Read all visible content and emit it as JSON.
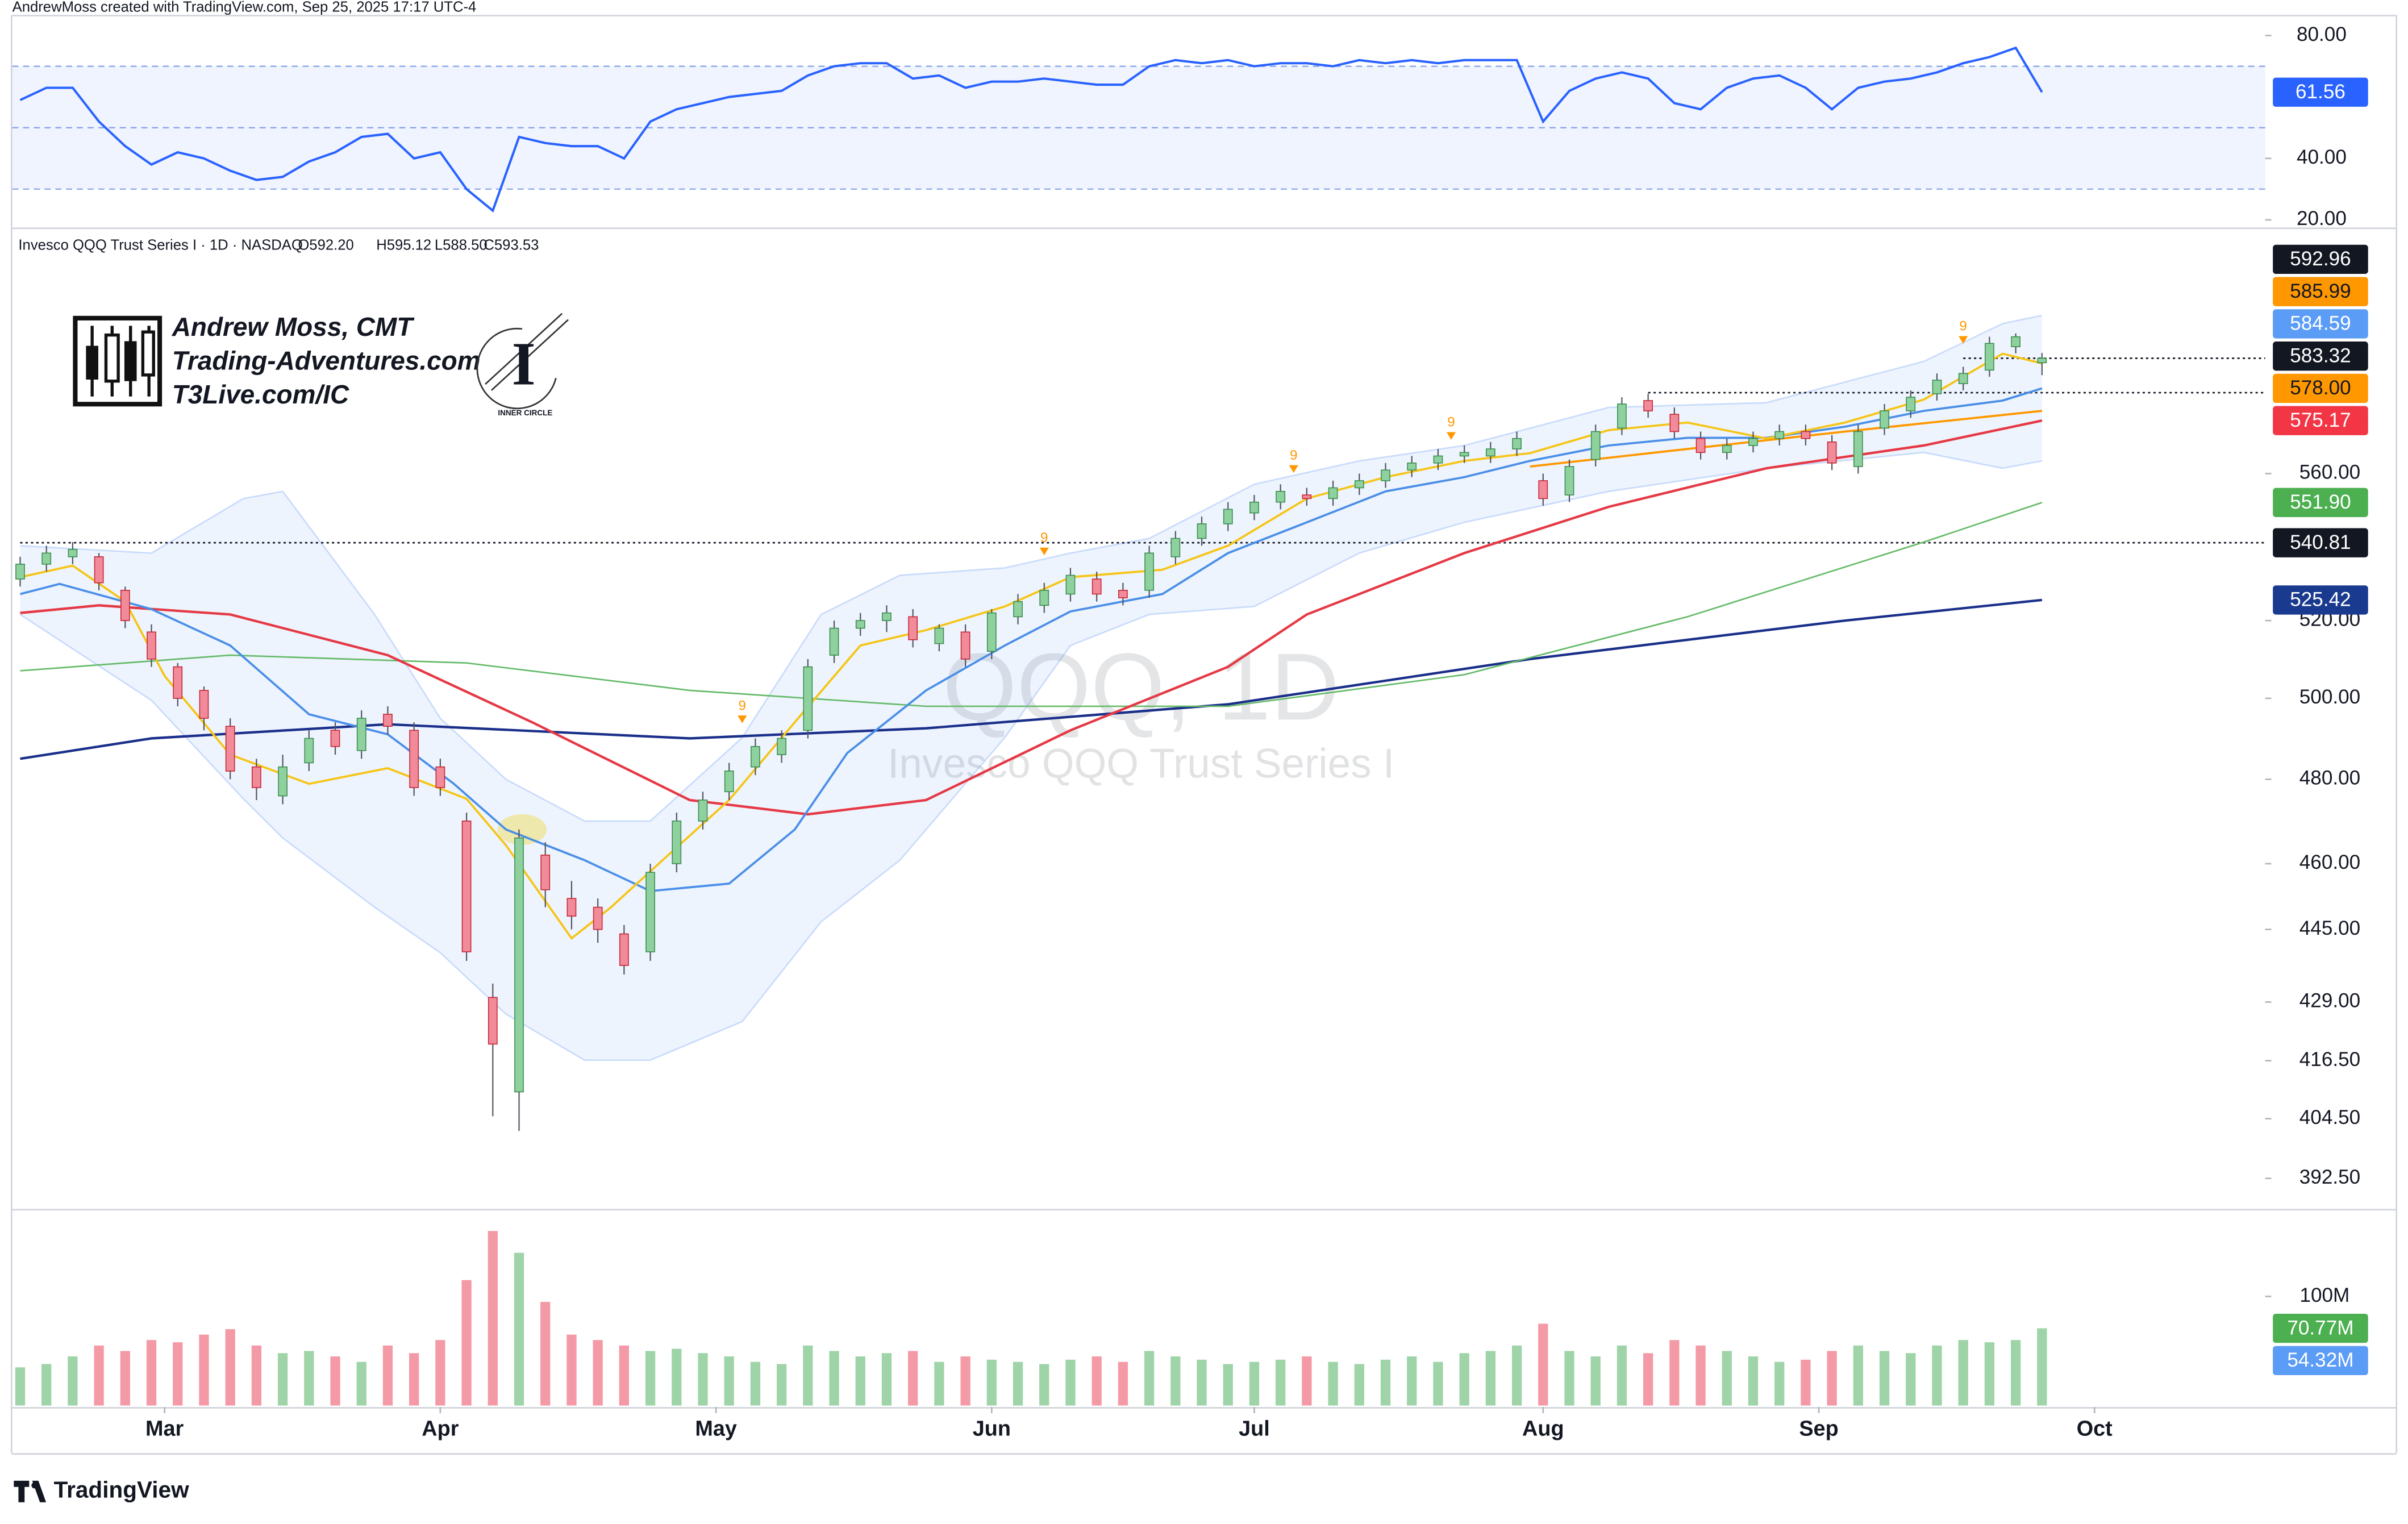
{
  "header": {
    "credit": "AndrewMoss created with TradingView.com, Sep 25, 2025 17:17 UTC-4",
    "symbol": "Invesco QQQ Trust Series I · 1D · NASDAQ",
    "ohlc": [
      {
        "value": 592.2,
        "label": "O592.20"
      },
      {
        "value": 595.12,
        "label": "H595.12"
      },
      {
        "value": 588.5,
        "label": "L588.50"
      },
      {
        "value": 593.53,
        "label": "C593.53"
      }
    ]
  },
  "logo": {
    "name": "Andrew Moss, CMT",
    "site": "Trading-Adventures.com",
    "link": "T3Live.com/IC",
    "badge": "INNER CIRCLE"
  },
  "footer": {
    "brand": "TradingView"
  },
  "chart_data": {
    "type": "candlestick",
    "watermark": {
      "title": "QQQ, 1D",
      "subtitle": "Invesco QQQ Trust Series I"
    },
    "xlim": [
      -0.6,
      171
    ],
    "xticks": [
      {
        "value": 11,
        "label": "Mar"
      },
      {
        "value": 32,
        "label": "Apr"
      },
      {
        "value": 53,
        "label": "May"
      },
      {
        "value": 74,
        "label": "Jun"
      },
      {
        "value": 94,
        "label": "Jul"
      },
      {
        "value": 116,
        "label": "Aug"
      },
      {
        "value": 137,
        "label": "Sep"
      },
      {
        "value": 158,
        "label": "Oct"
      }
    ],
    "log_scale": true,
    "grid": false,
    "ylim": [
      387.1,
      633
    ],
    "yticks": [
      {
        "value": 392.5,
        "label": "392.50"
      },
      {
        "value": 404.5,
        "label": "404.50"
      },
      {
        "value": 416.5,
        "label": "416.50"
      },
      {
        "value": 429,
        "label": "429.00"
      },
      {
        "value": 445,
        "label": "445.00"
      },
      {
        "value": 460,
        "label": "460.00"
      },
      {
        "value": 480,
        "label": "480.00"
      },
      {
        "value": 500,
        "label": "500.00"
      },
      {
        "value": 520,
        "label": "520.00"
      },
      {
        "value": 560,
        "label": "560.00"
      }
    ],
    "up_color": "#8fd19e",
    "up_edge": "#3d8f52",
    "down_color": "#f28b99",
    "down_edge": "#c62838",
    "wick_color": "#50535e",
    "x": [
      0,
      2,
      4,
      6,
      8,
      10,
      12,
      14,
      16,
      18,
      20,
      22,
      24,
      26,
      28,
      30,
      32,
      34,
      36,
      38,
      40,
      42,
      44,
      46,
      48,
      50,
      52,
      54,
      56,
      58,
      60,
      62,
      64,
      66,
      68,
      70,
      72,
      74,
      76,
      78,
      80,
      82,
      84,
      86,
      88,
      90,
      92,
      94,
      96,
      98,
      100,
      102,
      104,
      106,
      108,
      110,
      112,
      114,
      116,
      118,
      120,
      122,
      124,
      126,
      128,
      130,
      132,
      134,
      136,
      138,
      140,
      142,
      144,
      146,
      148,
      150,
      152,
      154
    ],
    "open": [
      531,
      535,
      537,
      537,
      528,
      517,
      508,
      502,
      493,
      483,
      476,
      484,
      492,
      487,
      496,
      492,
      483,
      470,
      430,
      410,
      462,
      452,
      450,
      444,
      440,
      460,
      470,
      477,
      483,
      486,
      492,
      511,
      518,
      520,
      521,
      514,
      517,
      512,
      521,
      524,
      527,
      531,
      528,
      528,
      537,
      542,
      546,
      549,
      552,
      554,
      553,
      556,
      558,
      561,
      563,
      565,
      565,
      567,
      558,
      554,
      564,
      573,
      581,
      577,
      570,
      566,
      568,
      570,
      572,
      569,
      562,
      573,
      578,
      583,
      586,
      590,
      597,
      592.2
    ],
    "high": [
      537,
      540,
      541,
      538,
      529,
      519,
      509,
      503,
      495,
      485,
      486,
      492,
      494,
      497,
      498,
      494,
      485,
      472,
      433,
      468,
      465,
      456,
      452,
      446,
      460,
      472,
      477,
      484,
      490,
      492,
      510,
      520,
      522,
      524,
      523,
      519,
      519,
      523,
      527,
      530,
      534,
      533,
      530,
      540,
      544,
      548,
      552,
      554,
      557,
      556,
      558,
      560,
      563,
      565,
      567,
      568,
      569,
      572,
      560,
      564,
      574,
      582,
      583,
      579,
      572,
      570,
      572,
      574,
      574,
      571,
      574,
      580,
      584,
      589,
      591,
      600,
      601,
      595.12
    ],
    "low": [
      529,
      533,
      535,
      528,
      518,
      508,
      498,
      492,
      480,
      475,
      474,
      482,
      486,
      485,
      491,
      476,
      476,
      438,
      405,
      402,
      450,
      445,
      442,
      435,
      438,
      458,
      468,
      475,
      481,
      484,
      490,
      509,
      516,
      517,
      513,
      512,
      508,
      510,
      519,
      522,
      525,
      525,
      524,
      526,
      535,
      540,
      544,
      547,
      550,
      551,
      551,
      554,
      556,
      559,
      561,
      563,
      563,
      565,
      551,
      552,
      562,
      571,
      576,
      570,
      564,
      564,
      566,
      568,
      568,
      561,
      560,
      571,
      576,
      581,
      584,
      588,
      595,
      588.5
    ],
    "close": [
      535,
      538,
      539,
      530,
      520,
      510,
      500,
      495,
      482,
      478,
      483,
      490,
      488,
      495,
      493,
      478,
      478,
      440,
      420,
      466,
      454,
      448,
      445,
      437,
      458,
      470,
      475,
      482,
      488,
      490,
      508,
      518,
      520,
      522,
      515,
      518,
      510,
      522,
      525,
      528,
      532,
      527,
      526,
      538,
      542,
      546,
      550,
      552,
      555,
      553,
      556,
      558,
      561,
      563,
      565,
      566,
      567,
      570,
      553,
      562,
      572,
      580,
      578,
      572,
      566,
      568,
      570,
      572,
      570,
      563,
      572,
      578,
      582,
      587,
      589,
      598,
      600,
      593.53
    ],
    "last_price_line_from": 148,
    "bollinger": {
      "fill": "rgba(66,133,244,0.09)",
      "edge": "rgba(66,133,244,0.25)",
      "x": [
        0,
        10,
        17,
        20,
        27,
        32,
        37,
        43,
        48,
        55,
        61,
        67,
        75,
        80,
        86,
        94,
        102,
        110,
        121,
        133,
        145,
        151,
        154
      ],
      "upper": [
        540,
        538,
        553,
        555,
        521.6,
        495,
        480,
        470,
        470,
        490.2,
        521.6,
        532,
        534,
        538,
        542,
        557,
        563.6,
        568,
        579,
        580.4,
        592.6,
        604,
        606.5
      ],
      "lower": [
        521.6,
        499.5,
        475.3,
        466,
        450,
        439.8,
        426.4,
        416.6,
        416.6,
        424.8,
        446.7,
        460.8,
        490.2,
        513.5,
        521.6,
        523.7,
        538,
        546.4,
        555,
        561.5,
        566,
        561.5,
        563.6
      ]
    },
    "moving_averages": [
      {
        "color": "#1a2f8a",
        "width": 1.6,
        "x": [
          0,
          10,
          28,
          51,
          69,
          92,
          115,
          139,
          154
        ],
        "values": [
          485,
          490,
          493.5,
          490,
          492.5,
          498.5,
          510,
          520,
          525.42
        ]
      },
      {
        "color": "#66bb6a",
        "width": 1,
        "x": [
          0,
          16,
          34,
          51,
          69,
          92,
          110,
          127,
          145,
          154
        ],
        "values": [
          507,
          511,
          509,
          502,
          498,
          498,
          506,
          521,
          541,
          551.9
        ]
      },
      {
        "color": "#e53945",
        "width": 1.6,
        "x": [
          0,
          6,
          16,
          28,
          39,
          51,
          60,
          69,
          80,
          92,
          98,
          110,
          121,
          133,
          145,
          154
        ],
        "values": [
          522,
          524,
          521.6,
          511,
          494,
          475,
          471.6,
          475,
          492,
          508,
          521.6,
          538,
          550.7,
          561.5,
          568,
          575.17
        ]
      },
      {
        "color": "#ff9800",
        "width": 1.4,
        "x": [
          115,
          127,
          139,
          154
        ],
        "values": [
          562,
          567,
          572,
          578
        ]
      },
      {
        "color": "#4a8fe7",
        "width": 1.4,
        "x": [
          0,
          3,
          10,
          16,
          22,
          28,
          33,
          37,
          43,
          48,
          54,
          59,
          63,
          69,
          75,
          80,
          87,
          92,
          98,
          104,
          110,
          115,
          121,
          127,
          133,
          139,
          145,
          151,
          154
        ],
        "values": [
          527,
          529.7,
          523,
          513.5,
          496,
          491,
          479,
          468,
          460.8,
          453.7,
          455.4,
          468,
          486.4,
          502,
          513.5,
          522.4,
          527,
          538,
          546.4,
          555,
          559,
          563.6,
          568,
          570.2,
          570.2,
          573.4,
          578,
          581,
          584.59
        ]
      },
      {
        "color": "#f5c518",
        "width": 1.4,
        "x": [
          0,
          4,
          8,
          11,
          16,
          22,
          28,
          34,
          37,
          42,
          45,
          49,
          54,
          59,
          64,
          69,
          75,
          80,
          87,
          92,
          98,
          104,
          110,
          115,
          121,
          127,
          133,
          139,
          145,
          151,
          154
        ],
        "values": [
          531.5,
          534.6,
          525,
          505.7,
          486,
          478.9,
          482.7,
          475.3,
          464.3,
          443,
          450,
          461,
          475,
          494,
          513.5,
          517.5,
          523.7,
          531.5,
          533.5,
          540,
          553,
          559,
          563.6,
          565.8,
          572.4,
          574.6,
          570,
          574.6,
          581.3,
          594.9,
          592
        ]
      }
    ],
    "td_markers": {
      "color": "#ff9800",
      "x": [
        55,
        78,
        97,
        109,
        148
      ],
      "y": [
        498,
        542,
        565,
        574.5,
        603
      ],
      "labels": [
        "9",
        "9",
        "9",
        "9",
        "9"
      ]
    },
    "price_labels": [
      {
        "value": 592.96,
        "color": "#131722",
        "text_color": "#ffffff"
      },
      {
        "value": 585.99,
        "color": "#ff9800",
        "text_color": "#131722"
      },
      {
        "value": 584.59,
        "color": "#5b9cf6",
        "text_color": "#ffffff"
      },
      {
        "value": 583.32,
        "color": "#131722",
        "text_color": "#ffffff",
        "line_from": 124
      },
      {
        "value": 578.0,
        "label": "578.00",
        "color": "#ff9800",
        "text_color": "#131722"
      },
      {
        "value": 575.17,
        "color": "#f23645",
        "text_color": "#ffffff"
      },
      {
        "value": 551.9,
        "label": "551.90",
        "color": "#4caf50",
        "text_color": "#ffffff"
      },
      {
        "value": 540.81,
        "color": "#131722",
        "text_color": "#ffffff",
        "line_from": 0
      },
      {
        "value": 525.42,
        "color": "#1a3a8f",
        "text_color": "#ffffff"
      }
    ],
    "rsi": {
      "ylim": [
        17.5,
        87.5
      ],
      "color": "#2962ff",
      "band_fill": "rgba(41,98,255,0.07)",
      "levels": [
        70,
        50,
        30
      ],
      "yticks": [
        {
          "value": 80,
          "label": "80.00"
        },
        {
          "value": 40,
          "label": "40.00"
        },
        {
          "value": 20,
          "label": "20.00"
        }
      ],
      "values": [
        59,
        63,
        63,
        52,
        44,
        38,
        42,
        40,
        36,
        33,
        34,
        39,
        42,
        47,
        48,
        40,
        42,
        30,
        23,
        47,
        45,
        44,
        44,
        40,
        52,
        56,
        58,
        60,
        61,
        62,
        67,
        70,
        71,
        71,
        66,
        67,
        63,
        65,
        65,
        66,
        65,
        64,
        64,
        70,
        72,
        71,
        72,
        70,
        71,
        71,
        70,
        72,
        71,
        72,
        71,
        72,
        72,
        72,
        52,
        62,
        66,
        68,
        66,
        58,
        56,
        63,
        66,
        67,
        63,
        56,
        63,
        65,
        66,
        68,
        71,
        73,
        76,
        61.56
      ]
    },
    "volume": {
      "ylim": [
        0,
        176
      ],
      "up_color": "#9ed4a8",
      "down_color": "#f49aa6",
      "yticks": [
        {
          "value": 100,
          "label": "100M"
        }
      ],
      "values": [
        35,
        38,
        45,
        55,
        50,
        60,
        58,
        65,
        70,
        55,
        48,
        50,
        45,
        40,
        55,
        48,
        60,
        115,
        160,
        140,
        95,
        65,
        60,
        55,
        50,
        52,
        48,
        45,
        40,
        38,
        55,
        50,
        45,
        48,
        50,
        40,
        45,
        42,
        40,
        38,
        42,
        45,
        40,
        50,
        45,
        42,
        38,
        40,
        42,
        45,
        40,
        38,
        42,
        45,
        40,
        48,
        50,
        55,
        75,
        50,
        45,
        55,
        48,
        60,
        55,
        50,
        45,
        40,
        42,
        50,
        55,
        50,
        48,
        55,
        60,
        58,
        60,
        70.77
      ],
      "labels": [
        {
          "value": 70.77,
          "label": "70.77M",
          "color": "#4caf50"
        },
        {
          "value": 54.32,
          "label": "54.32M",
          "color": "#5b9cf6"
        }
      ]
    }
  }
}
